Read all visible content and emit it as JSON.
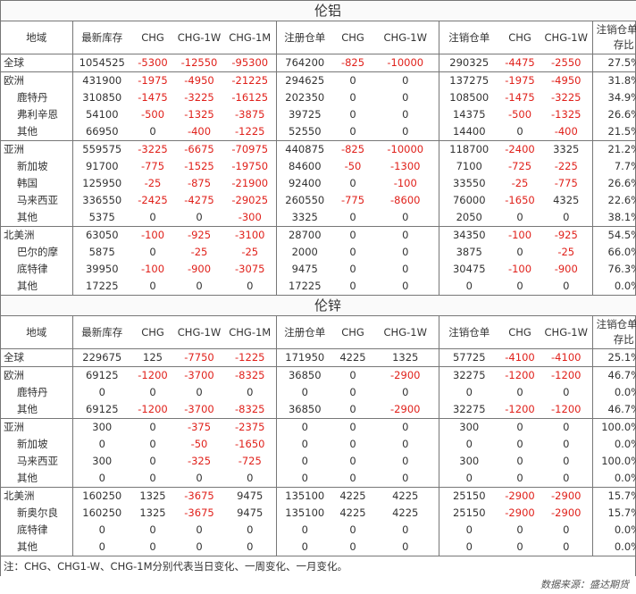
{
  "headers": [
    "地域",
    "最新库存",
    "CHG",
    "CHG-1W",
    "CHG-1M",
    "注册仓单",
    "CHG",
    "CHG-1W",
    "注销仓单",
    "CHG",
    "CHG-1W",
    "注销仓单/库存比"
  ],
  "aluminum": {
    "title": "伦铝",
    "groups": [
      {
        "rows": [
          {
            "region": "全球",
            "sub": false,
            "v": [
              "1054525",
              "-5300",
              "-12550",
              "-95300",
              "764200",
              "-825",
              "-10000",
              "290325",
              "-4475",
              "-2550",
              "27.5%"
            ]
          }
        ]
      },
      {
        "rows": [
          {
            "region": "欧洲",
            "sub": false,
            "v": [
              "431900",
              "-1975",
              "-4950",
              "-21225",
              "294625",
              "0",
              "0",
              "137275",
              "-1975",
              "-4950",
              "31.8%"
            ]
          },
          {
            "region": "鹿特丹",
            "sub": true,
            "v": [
              "310850",
              "-1475",
              "-3225",
              "-16125",
              "202350",
              "0",
              "0",
              "108500",
              "-1475",
              "-3225",
              "34.9%"
            ]
          },
          {
            "region": "弗利辛恩",
            "sub": true,
            "v": [
              "54100",
              "-500",
              "-1325",
              "-3875",
              "39725",
              "0",
              "0",
              "14375",
              "-500",
              "-1325",
              "26.6%"
            ]
          },
          {
            "region": "其他",
            "sub": true,
            "v": [
              "66950",
              "0",
              "-400",
              "-1225",
              "52550",
              "0",
              "0",
              "14400",
              "0",
              "-400",
              "21.5%"
            ]
          }
        ]
      },
      {
        "rows": [
          {
            "region": "亚洲",
            "sub": false,
            "v": [
              "559575",
              "-3225",
              "-6675",
              "-70975",
              "440875",
              "-825",
              "-10000",
              "118700",
              "-2400",
              "3325",
              "21.2%"
            ]
          },
          {
            "region": "新加坡",
            "sub": true,
            "v": [
              "91700",
              "-775",
              "-1525",
              "-19750",
              "84600",
              "-50",
              "-1300",
              "7100",
              "-725",
              "-225",
              "7.7%"
            ]
          },
          {
            "region": "韩国",
            "sub": true,
            "v": [
              "125950",
              "-25",
              "-875",
              "-21900",
              "92400",
              "0",
              "-100",
              "33550",
              "-25",
              "-775",
              "26.6%"
            ]
          },
          {
            "region": "马来西亚",
            "sub": true,
            "v": [
              "336550",
              "-2425",
              "-4275",
              "-29025",
              "260550",
              "-775",
              "-8600",
              "76000",
              "-1650",
              "4325",
              "22.6%"
            ]
          },
          {
            "region": "其他",
            "sub": true,
            "v": [
              "5375",
              "0",
              "0",
              "-300",
              "3325",
              "0",
              "0",
              "2050",
              "0",
              "0",
              "38.1%"
            ]
          }
        ]
      },
      {
        "rows": [
          {
            "region": "北美洲",
            "sub": false,
            "v": [
              "63050",
              "-100",
              "-925",
              "-3100",
              "28700",
              "0",
              "0",
              "34350",
              "-100",
              "-925",
              "54.5%"
            ]
          },
          {
            "region": "巴尔的摩",
            "sub": true,
            "v": [
              "5875",
              "0",
              "-25",
              "-25",
              "2000",
              "0",
              "0",
              "3875",
              "0",
              "-25",
              "66.0%"
            ]
          },
          {
            "region": "底特律",
            "sub": true,
            "v": [
              "39950",
              "-100",
              "-900",
              "-3075",
              "9475",
              "0",
              "0",
              "30475",
              "-100",
              "-900",
              "76.3%"
            ]
          },
          {
            "region": "其他",
            "sub": true,
            "v": [
              "17225",
              "0",
              "0",
              "0",
              "17225",
              "0",
              "0",
              "0",
              "0",
              "0",
              "0.0%"
            ]
          }
        ]
      }
    ]
  },
  "zinc": {
    "title": "伦锌",
    "groups": [
      {
        "rows": [
          {
            "region": "全球",
            "sub": false,
            "v": [
              "229675",
              "125",
              "-7750",
              "-1225",
              "171950",
              "4225",
              "1325",
              "57725",
              "-4100",
              "-4100",
              "25.1%"
            ]
          }
        ]
      },
      {
        "rows": [
          {
            "region": "欧洲",
            "sub": false,
            "v": [
              "69125",
              "-1200",
              "-3700",
              "-8325",
              "36850",
              "0",
              "-2900",
              "32275",
              "-1200",
              "-1200",
              "46.7%"
            ]
          },
          {
            "region": "鹿特丹",
            "sub": true,
            "v": [
              "0",
              "0",
              "0",
              "0",
              "0",
              "0",
              "0",
              "0",
              "0",
              "0",
              "0.0%"
            ]
          },
          {
            "region": "其他",
            "sub": true,
            "v": [
              "69125",
              "-1200",
              "-3700",
              "-8325",
              "36850",
              "0",
              "-2900",
              "32275",
              "-1200",
              "-1200",
              "46.7%"
            ]
          }
        ]
      },
      {
        "rows": [
          {
            "region": "亚洲",
            "sub": false,
            "v": [
              "300",
              "0",
              "-375",
              "-2375",
              "0",
              "0",
              "0",
              "300",
              "0",
              "0",
              "100.0%"
            ]
          },
          {
            "region": "新加坡",
            "sub": true,
            "v": [
              "0",
              "0",
              "-50",
              "-1650",
              "0",
              "0",
              "0",
              "0",
              "0",
              "0",
              "0.0%"
            ]
          },
          {
            "region": "马来西亚",
            "sub": true,
            "v": [
              "300",
              "0",
              "-325",
              "-725",
              "0",
              "0",
              "0",
              "300",
              "0",
              "0",
              "100.0%"
            ]
          },
          {
            "region": "其他",
            "sub": true,
            "v": [
              "0",
              "0",
              "0",
              "0",
              "0",
              "0",
              "0",
              "0",
              "0",
              "0",
              "0.0%"
            ]
          }
        ]
      },
      {
        "rows": [
          {
            "region": "北美洲",
            "sub": false,
            "v": [
              "160250",
              "1325",
              "-3675",
              "9475",
              "135100",
              "4225",
              "4225",
              "25150",
              "-2900",
              "-2900",
              "15.7%"
            ]
          },
          {
            "region": "新奥尔良",
            "sub": true,
            "v": [
              "160250",
              "1325",
              "-3675",
              "9475",
              "135100",
              "4225",
              "4225",
              "25150",
              "-2900",
              "-2900",
              "15.7%"
            ]
          },
          {
            "region": "底特律",
            "sub": true,
            "v": [
              "0",
              "0",
              "0",
              "0",
              "0",
              "0",
              "0",
              "0",
              "0",
              "0",
              "0.0%"
            ]
          },
          {
            "region": "其他",
            "sub": true,
            "v": [
              "0",
              "0",
              "0",
              "0",
              "0",
              "0",
              "0",
              "0",
              "0",
              "0",
              "0.0%"
            ]
          }
        ]
      }
    ]
  },
  "note": "注：CHG、CHG1-W、CHG-1M分别代表当日变化、一周变化、一月变化。",
  "source": "数据来源：盛达期货",
  "colors": {
    "negative": "#e0211b",
    "text": "#333333",
    "border": "#777777"
  }
}
